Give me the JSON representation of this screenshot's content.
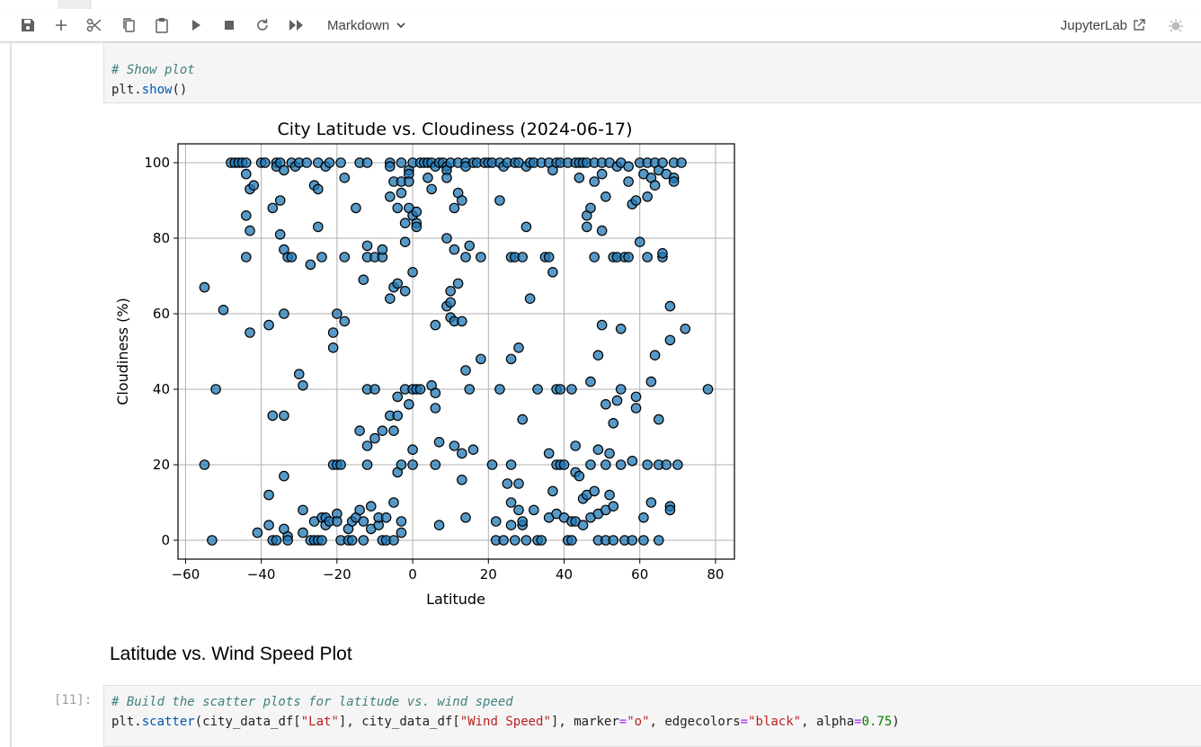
{
  "toolbar": {
    "buttons": [
      {
        "name": "save-icon"
      },
      {
        "name": "plus-icon"
      },
      {
        "name": "scissors-icon"
      },
      {
        "name": "copy-icon"
      },
      {
        "name": "paste-icon"
      },
      {
        "name": "run-icon"
      },
      {
        "name": "stop-icon"
      },
      {
        "name": "restart-icon"
      },
      {
        "name": "fast-forward-icon"
      }
    ],
    "cell_type": "Markdown",
    "jupyterlab_label": "JupyterLab"
  },
  "cells": {
    "show_plot": {
      "comment": "# Show plot",
      "code_obj": "plt.",
      "code_fn": "show",
      "code_end": "()"
    },
    "heading": "Latitude vs. Wind Speed Plot",
    "wind": {
      "prompt": "[11]:",
      "comment": "# Build the scatter plots for latitude vs. wind speed",
      "p1": "plt.",
      "p2": "scatter",
      "p3": "(city_data_df[",
      "s1": "\"Lat\"",
      "p4": "], city_data_df[",
      "s2": "\"Wind Speed\"",
      "p5": "], marker",
      "eq1": "=",
      "s3": "\"o\"",
      "p6": ", edgecolors",
      "eq2": "=",
      "s4": "\"black\"",
      "p7": ", alpha",
      "eq3": "=",
      "n1": "0.75",
      "p8": ")"
    }
  },
  "chart_data": {
    "type": "scatter",
    "title": "City Latitude vs. Cloudiness (2024-06-17)",
    "xlabel": "Latitude",
    "ylabel": "Cloudiness (%)",
    "xlim": [
      -62,
      85
    ],
    "ylim": [
      -5,
      105
    ],
    "xticks": [
      -60,
      -40,
      -20,
      0,
      20,
      40,
      60,
      80
    ],
    "yticks": [
      0,
      20,
      40,
      60,
      80,
      100
    ],
    "grid": true,
    "marker_color": "#1f77b4",
    "marker_edge": "#000000",
    "alpha": 0.75,
    "points": [
      [
        -55,
        67
      ],
      [
        -55,
        20
      ],
      [
        -53,
        0
      ],
      [
        -52,
        40
      ],
      [
        -50,
        61
      ],
      [
        -48,
        100
      ],
      [
        -47,
        100
      ],
      [
        -46,
        100
      ],
      [
        -45,
        100
      ],
      [
        -44,
        100
      ],
      [
        -44,
        75
      ],
      [
        -44,
        86
      ],
      [
        -44,
        97
      ],
      [
        -43,
        82
      ],
      [
        -43,
        93
      ],
      [
        -43,
        55
      ],
      [
        -42,
        94
      ],
      [
        -41,
        2
      ],
      [
        -40,
        100
      ],
      [
        -39,
        100
      ],
      [
        -38,
        57
      ],
      [
        -38,
        12
      ],
      [
        -38,
        4
      ],
      [
        -37,
        88
      ],
      [
        -37,
        33
      ],
      [
        -37,
        0
      ],
      [
        -36,
        100
      ],
      [
        -36,
        99
      ],
      [
        -36,
        0
      ],
      [
        -35,
        90
      ],
      [
        -35,
        100
      ],
      [
        -35,
        81
      ],
      [
        -34,
        77
      ],
      [
        -34,
        33
      ],
      [
        -34,
        17
      ],
      [
        -34,
        3
      ],
      [
        -34,
        60
      ],
      [
        -34,
        98
      ],
      [
        -33,
        75
      ],
      [
        -33,
        1
      ],
      [
        -33,
        0
      ],
      [
        -32,
        100
      ],
      [
        -32,
        75
      ],
      [
        -31,
        99
      ],
      [
        -30,
        100
      ],
      [
        -30,
        44
      ],
      [
        -29,
        41
      ],
      [
        -29,
        8
      ],
      [
        -29,
        2
      ],
      [
        -28,
        100
      ],
      [
        -27,
        73
      ],
      [
        -27,
        0
      ],
      [
        -26,
        94
      ],
      [
        -26,
        0
      ],
      [
        -26,
        5
      ],
      [
        -25,
        93
      ],
      [
        -25,
        83
      ],
      [
        -25,
        100
      ],
      [
        -25,
        0
      ],
      [
        -24,
        75
      ],
      [
        -24,
        6
      ],
      [
        -24,
        0
      ],
      [
        -23,
        99
      ],
      [
        -23,
        6
      ],
      [
        -23,
        4
      ],
      [
        -22,
        100
      ],
      [
        -22,
        5
      ],
      [
        -21,
        51
      ],
      [
        -21,
        20
      ],
      [
        -21,
        55
      ],
      [
        -20,
        60
      ],
      [
        -20,
        20
      ],
      [
        -20,
        7
      ],
      [
        -20,
        5
      ],
      [
        -19,
        100
      ],
      [
        -19,
        20
      ],
      [
        -19,
        0
      ],
      [
        -18,
        96
      ],
      [
        -18,
        75
      ],
      [
        -18,
        58
      ],
      [
        -17,
        0
      ],
      [
        -17,
        3
      ],
      [
        -16,
        5
      ],
      [
        -16,
        0
      ],
      [
        -15,
        88
      ],
      [
        -15,
        6
      ],
      [
        -14,
        29
      ],
      [
        -14,
        8
      ],
      [
        -14,
        100
      ],
      [
        -13,
        69
      ],
      [
        -13,
        5
      ],
      [
        -13,
        0
      ],
      [
        -12,
        100
      ],
      [
        -12,
        78
      ],
      [
        -12,
        75
      ],
      [
        -12,
        40
      ],
      [
        -12,
        25
      ],
      [
        -12,
        20
      ],
      [
        -11,
        9
      ],
      [
        -11,
        3
      ],
      [
        -10,
        75
      ],
      [
        -10,
        40
      ],
      [
        -10,
        27
      ],
      [
        -9,
        4
      ],
      [
        -9,
        6
      ],
      [
        -8,
        75
      ],
      [
        -8,
        77
      ],
      [
        -8,
        29
      ],
      [
        -8,
        0
      ],
      [
        -7,
        6
      ],
      [
        -7,
        0
      ],
      [
        -6,
        100
      ],
      [
        -6,
        99
      ],
      [
        -6,
        91
      ],
      [
        -6,
        64
      ],
      [
        -6,
        33
      ],
      [
        -5,
        95
      ],
      [
        -5,
        67
      ],
      [
        -5,
        29
      ],
      [
        -5,
        10
      ],
      [
        -5,
        0
      ],
      [
        -4,
        88
      ],
      [
        -4,
        68
      ],
      [
        -4,
        38
      ],
      [
        -4,
        33
      ],
      [
        -4,
        18
      ],
      [
        -3,
        100
      ],
      [
        -3,
        95
      ],
      [
        -3,
        92
      ],
      [
        -3,
        20
      ],
      [
        -3,
        2
      ],
      [
        -3,
        5
      ],
      [
        -2,
        79
      ],
      [
        -2,
        84
      ],
      [
        -2,
        40
      ],
      [
        -2,
        66
      ],
      [
        -1,
        98
      ],
      [
        -1,
        97
      ],
      [
        -1,
        95
      ],
      [
        -1,
        88
      ],
      [
        -1,
        36
      ],
      [
        0,
        100
      ],
      [
        0,
        86
      ],
      [
        0,
        71
      ],
      [
        0,
        40
      ],
      [
        0,
        24
      ],
      [
        0,
        20
      ],
      [
        1,
        87
      ],
      [
        1,
        84
      ],
      [
        1,
        83
      ],
      [
        1,
        40
      ],
      [
        2,
        100
      ],
      [
        2,
        40
      ],
      [
        3,
        100
      ],
      [
        4,
        100
      ],
      [
        4,
        96
      ],
      [
        5,
        93
      ],
      [
        5,
        41
      ],
      [
        5,
        100
      ],
      [
        6,
        99
      ],
      [
        6,
        57
      ],
      [
        6,
        39
      ],
      [
        6,
        35
      ],
      [
        6,
        20
      ],
      [
        7,
        100
      ],
      [
        7,
        26
      ],
      [
        7,
        4
      ],
      [
        8,
        100
      ],
      [
        9,
        99
      ],
      [
        9,
        98
      ],
      [
        9,
        96
      ],
      [
        9,
        80
      ],
      [
        9,
        62
      ],
      [
        10,
        100
      ],
      [
        10,
        66
      ],
      [
        10,
        63
      ],
      [
        10,
        59
      ],
      [
        11,
        88
      ],
      [
        11,
        77
      ],
      [
        11,
        58
      ],
      [
        11,
        25
      ],
      [
        12,
        92
      ],
      [
        12,
        68
      ],
      [
        12,
        100
      ],
      [
        13,
        90
      ],
      [
        13,
        23
      ],
      [
        13,
        16
      ],
      [
        13,
        58
      ],
      [
        14,
        100
      ],
      [
        14,
        99
      ],
      [
        14,
        45
      ],
      [
        14,
        75
      ],
      [
        14,
        6
      ],
      [
        15,
        78
      ],
      [
        15,
        40
      ],
      [
        16,
        100
      ],
      [
        16,
        24
      ],
      [
        17,
        100
      ],
      [
        18,
        75
      ],
      [
        18,
        48
      ],
      [
        19,
        100
      ],
      [
        20,
        100
      ],
      [
        21,
        100
      ],
      [
        21,
        20
      ],
      [
        22,
        0
      ],
      [
        22,
        5
      ],
      [
        23,
        90
      ],
      [
        23,
        40
      ],
      [
        23,
        100
      ],
      [
        24,
        99
      ],
      [
        24,
        0
      ],
      [
        25,
        100
      ],
      [
        25,
        15
      ],
      [
        26,
        75
      ],
      [
        26,
        48
      ],
      [
        26,
        20
      ],
      [
        26,
        10
      ],
      [
        26,
        4
      ],
      [
        27,
        100
      ],
      [
        27,
        75
      ],
      [
        27,
        0
      ],
      [
        28,
        8
      ],
      [
        28,
        15
      ],
      [
        28,
        100
      ],
      [
        28,
        51
      ],
      [
        29,
        75
      ],
      [
        29,
        32
      ],
      [
        29,
        4
      ],
      [
        29,
        5
      ],
      [
        30,
        83
      ],
      [
        30,
        99
      ],
      [
        30,
        0
      ],
      [
        31,
        100
      ],
      [
        31,
        64
      ],
      [
        32,
        8
      ],
      [
        32,
        100
      ],
      [
        33,
        40
      ],
      [
        33,
        0
      ],
      [
        34,
        100
      ],
      [
        34,
        0
      ],
      [
        35,
        75
      ],
      [
        36,
        100
      ],
      [
        36,
        75
      ],
      [
        36,
        23
      ],
      [
        36,
        6
      ],
      [
        37,
        71
      ],
      [
        37,
        98
      ],
      [
        37,
        13
      ],
      [
        38,
        100
      ],
      [
        38,
        40
      ],
      [
        38,
        20
      ],
      [
        38,
        7
      ],
      [
        39,
        40
      ],
      [
        39,
        20
      ],
      [
        39,
        100
      ],
      [
        40,
        20
      ],
      [
        40,
        6
      ],
      [
        41,
        0
      ],
      [
        41,
        100
      ],
      [
        42,
        5
      ],
      [
        42,
        0
      ],
      [
        42,
        40
      ],
      [
        43,
        100
      ],
      [
        43,
        25
      ],
      [
        43,
        18
      ],
      [
        43,
        5
      ],
      [
        44,
        96
      ],
      [
        44,
        100
      ],
      [
        44,
        17
      ],
      [
        45,
        100
      ],
      [
        45,
        11
      ],
      [
        45,
        4
      ],
      [
        46,
        83
      ],
      [
        46,
        100
      ],
      [
        46,
        86
      ],
      [
        46,
        12
      ],
      [
        47,
        88
      ],
      [
        47,
        42
      ],
      [
        47,
        20
      ],
      [
        47,
        6
      ],
      [
        48,
        100
      ],
      [
        48,
        95
      ],
      [
        48,
        75
      ],
      [
        48,
        13
      ],
      [
        49,
        24
      ],
      [
        49,
        7
      ],
      [
        49,
        0
      ],
      [
        49,
        49
      ],
      [
        50,
        97
      ],
      [
        50,
        100
      ],
      [
        50,
        82
      ],
      [
        50,
        57
      ],
      [
        51,
        91
      ],
      [
        51,
        36
      ],
      [
        51,
        20
      ],
      [
        51,
        8
      ],
      [
        51,
        0
      ],
      [
        52,
        12
      ],
      [
        52,
        100
      ],
      [
        52,
        23
      ],
      [
        53,
        75
      ],
      [
        53,
        31
      ],
      [
        53,
        9
      ],
      [
        53,
        0
      ],
      [
        54,
        75
      ],
      [
        54,
        37
      ],
      [
        54,
        99
      ],
      [
        55,
        20
      ],
      [
        55,
        100
      ],
      [
        55,
        56
      ],
      [
        55,
        40
      ],
      [
        56,
        75
      ],
      [
        56,
        0
      ],
      [
        57,
        99
      ],
      [
        57,
        75
      ],
      [
        57,
        95
      ],
      [
        58,
        21
      ],
      [
        58,
        89
      ],
      [
        58,
        0
      ],
      [
        59,
        90
      ],
      [
        59,
        38
      ],
      [
        59,
        35
      ],
      [
        60,
        100
      ],
      [
        60,
        79
      ],
      [
        61,
        97
      ],
      [
        61,
        6
      ],
      [
        61,
        0
      ],
      [
        62,
        91
      ],
      [
        62,
        75
      ],
      [
        62,
        20
      ],
      [
        62,
        100
      ],
      [
        63,
        96
      ],
      [
        63,
        42
      ],
      [
        63,
        10
      ],
      [
        64,
        100
      ],
      [
        64,
        94
      ],
      [
        64,
        49
      ],
      [
        65,
        98
      ],
      [
        65,
        32
      ],
      [
        65,
        0
      ],
      [
        65,
        20
      ],
      [
        66,
        75
      ],
      [
        66,
        76
      ],
      [
        66,
        100
      ],
      [
        67,
        97
      ],
      [
        67,
        20
      ],
      [
        68,
        9
      ],
      [
        68,
        8
      ],
      [
        68,
        62
      ],
      [
        68,
        53
      ],
      [
        69,
        100
      ],
      [
        69,
        96
      ],
      [
        69,
        95
      ],
      [
        70,
        20
      ],
      [
        71,
        100
      ],
      [
        72,
        56
      ],
      [
        78,
        40
      ]
    ]
  }
}
